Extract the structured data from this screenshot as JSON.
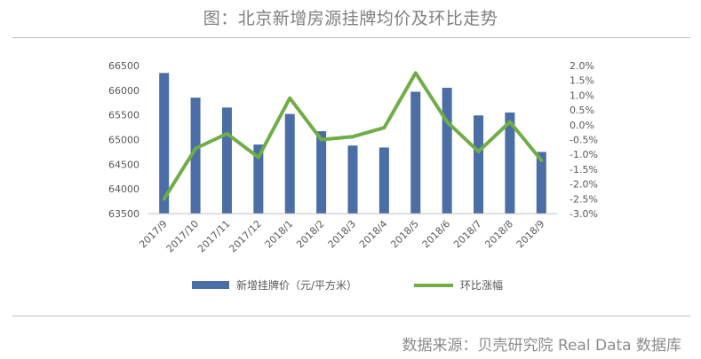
{
  "title": "图：北京新增房源挂牌均价及环比走势",
  "source": "数据来源：贝壳研究院 Real Data 数据库",
  "chart_data": {
    "type": "bar",
    "categories": [
      "2017/9",
      "2017/10",
      "2017/11",
      "2017/12",
      "2018/1",
      "2018/2",
      "2018/3",
      "2018/4",
      "2018/5",
      "2018/6",
      "2018/7",
      "2018/8",
      "2018/9"
    ],
    "series": [
      {
        "name": "新增挂牌价（元/平方米）",
        "type": "bar",
        "axis": "left",
        "color": "#4a6ea5",
        "values": [
          66350,
          65850,
          65650,
          64900,
          65520,
          65170,
          64880,
          64840,
          65970,
          66050,
          65490,
          65550,
          64750
        ]
      },
      {
        "name": "环比涨幅",
        "type": "line",
        "axis": "right",
        "color": "#70ad47",
        "values": [
          -2.5,
          -0.8,
          -0.3,
          -1.1,
          0.9,
          -0.5,
          -0.4,
          -0.1,
          1.75,
          0.1,
          -0.9,
          0.1,
          -1.2
        ]
      }
    ],
    "y_left": {
      "min": 63500,
      "max": 66500,
      "step": 500,
      "ticks": [
        "63500",
        "64000",
        "64500",
        "65000",
        "65500",
        "66000",
        "66500"
      ]
    },
    "y_right": {
      "min": -3.0,
      "max": 2.0,
      "step": 0.5,
      "ticks": [
        "-3.0%",
        "-2.5%",
        "-2.0%",
        "-1.5%",
        "-1.0%",
        "-0.5%",
        "0.0%",
        "0.5%",
        "1.0%",
        "1.5%",
        "2.0%"
      ]
    },
    "grid": false,
    "legend_position": "bottom"
  }
}
